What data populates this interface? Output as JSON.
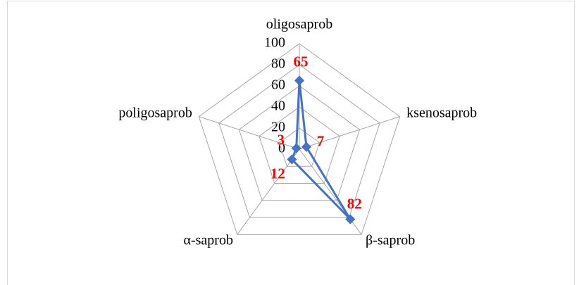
{
  "chart_data": {
    "type": "radar",
    "categories": [
      "oligosaprob",
      "ksenosaprob",
      "β-saprob",
      "α-saprob",
      "poligosaprob"
    ],
    "series": [
      {
        "color": "#4472c4",
        "values": [
          65,
          7,
          82,
          12,
          3
        ]
      }
    ],
    "ylim": [
      0,
      100
    ],
    "yticks": [
      0,
      20,
      40,
      60,
      80,
      100
    ],
    "grid": true
  }
}
